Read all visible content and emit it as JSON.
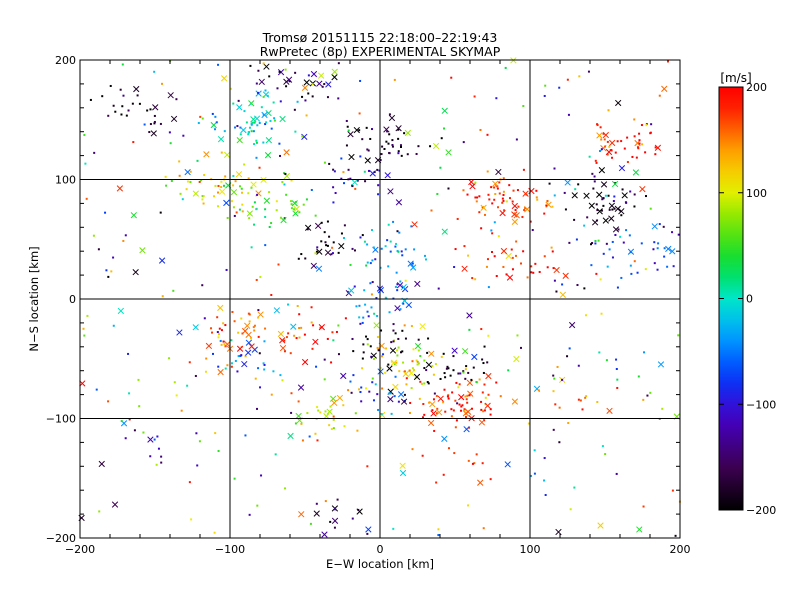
{
  "chart_data": {
    "type": "scatter",
    "title": "Tromsø 20151115 22:18:00–22:19:43",
    "subtitle": "RwPretec (8p) EXPERIMENTAL SKYMAP",
    "xlabel": "E−W location [km]",
    "ylabel": "N−S location [km]",
    "xlim": [
      -200,
      200
    ],
    "ylim": [
      -200,
      200
    ],
    "x_ticks": [
      -200,
      -100,
      0,
      100,
      200
    ],
    "y_ticks": [
      -200,
      -100,
      0,
      100,
      200
    ],
    "x_tick_labels": [
      "−200",
      "−100",
      "0",
      "100",
      "200"
    ],
    "y_tick_labels": [
      "−200",
      "−100",
      "0",
      "100",
      "200"
    ],
    "grid": true,
    "markers": [
      "dot",
      "x"
    ],
    "colorbar": {
      "label": "[m/s]",
      "range": [
        -200,
        200
      ],
      "ticks": [
        -200,
        -100,
        0,
        100,
        200
      ],
      "tick_labels": [
        "−200",
        "−100",
        "0",
        "100",
        "200"
      ],
      "colormap": "black-purple-blue-cyan-green-yellow-orange-red"
    },
    "clusters": [
      {
        "x": 55,
        "y": -85,
        "v": 180,
        "n": 70
      },
      {
        "x": 20,
        "y": -55,
        "v": 120,
        "n": 55
      },
      {
        "x": 45,
        "y": -60,
        "v": -190,
        "n": 35
      },
      {
        "x": 0,
        "y": -40,
        "v": -190,
        "n": 25
      },
      {
        "x": 0,
        "y": -75,
        "v": -70,
        "n": 20
      },
      {
        "x": -90,
        "y": -30,
        "v": 150,
        "n": 45
      },
      {
        "x": -90,
        "y": -45,
        "v": -50,
        "n": 20
      },
      {
        "x": -50,
        "y": -30,
        "v": 190,
        "n": 25
      },
      {
        "x": -35,
        "y": -100,
        "v": 100,
        "n": 30
      },
      {
        "x": 5,
        "y": 35,
        "v": -40,
        "n": 35
      },
      {
        "x": -35,
        "y": 45,
        "v": -195,
        "n": 30
      },
      {
        "x": 0,
        "y": 130,
        "v": -185,
        "n": 45
      },
      {
        "x": 85,
        "y": 85,
        "v": 185,
        "n": 65
      },
      {
        "x": 90,
        "y": 30,
        "v": 185,
        "n": 35
      },
      {
        "x": 150,
        "y": 85,
        "v": -185,
        "n": 45
      },
      {
        "x": 170,
        "y": 40,
        "v": -70,
        "n": 35
      },
      {
        "x": 165,
        "y": 130,
        "v": 190,
        "n": 45
      },
      {
        "x": -85,
        "y": 150,
        "v": -10,
        "n": 55
      },
      {
        "x": -110,
        "y": 100,
        "v": 110,
        "n": 45
      },
      {
        "x": -70,
        "y": 80,
        "v": 60,
        "n": 40
      },
      {
        "x": -160,
        "y": 160,
        "v": -190,
        "n": 30
      },
      {
        "x": -60,
        "y": 180,
        "v": -170,
        "n": 30
      },
      {
        "x": 60,
        "y": -140,
        "v": 190,
        "n": 12
      },
      {
        "x": -25,
        "y": -185,
        "v": -150,
        "n": 12
      },
      {
        "x": 0,
        "y": 0,
        "v": -60,
        "n": 35
      },
      {
        "x": -10,
        "y": 100,
        "v": -130,
        "n": 25
      },
      {
        "x": 130,
        "y": -80,
        "v": 160,
        "n": 10
      },
      {
        "x": -150,
        "y": -120,
        "v": -120,
        "n": 10
      }
    ],
    "scatter_points": 1600
  }
}
